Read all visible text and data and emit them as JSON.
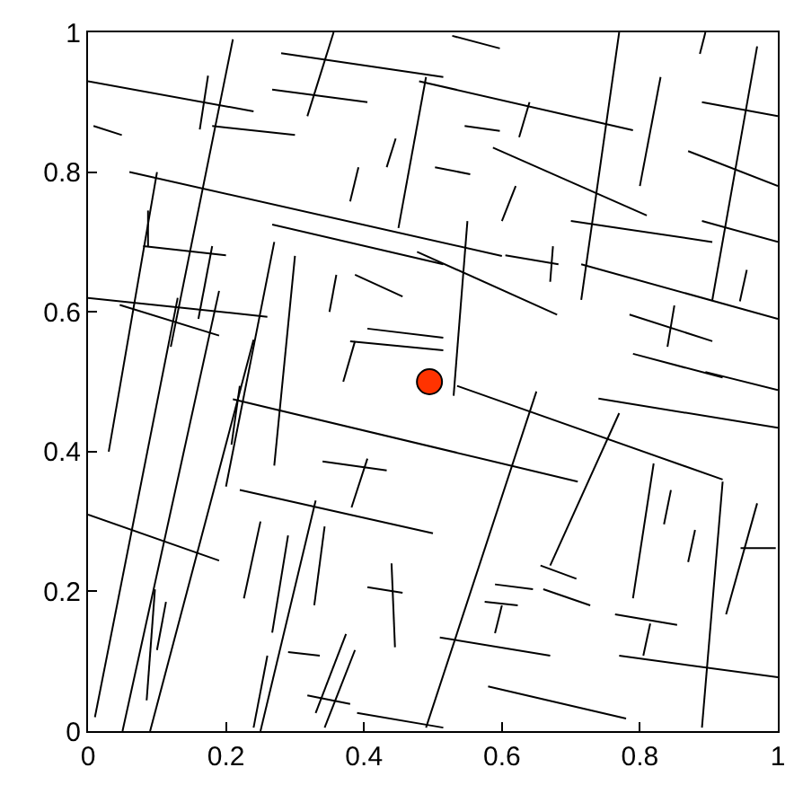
{
  "chart_data": {
    "type": "line",
    "marker": "none",
    "line_style": "solid",
    "grid": false,
    "xlim": [
      0,
      1
    ],
    "ylim": [
      0,
      1
    ],
    "xticks": [
      0,
      0.2,
      0.4,
      0.6,
      0.8,
      1
    ],
    "yticks": [
      0,
      0.2,
      0.4,
      0.6,
      0.8,
      1
    ],
    "series": [
      {
        "color": "#000000",
        "x": [
          0.0,
          0.24
        ],
        "values": [
          0.93,
          0.887
        ]
      },
      {
        "color": "#000000",
        "x": [
          0.48,
          0.79
        ],
        "values": [
          0.93,
          0.86
        ]
      },
      {
        "color": "#000000",
        "x": [
          0.06,
          0.6
        ],
        "values": [
          0.8,
          0.68
        ]
      },
      {
        "color": "#000000",
        "x": [
          0.0,
          0.26
        ],
        "values": [
          0.62,
          0.593
        ]
      },
      {
        "color": "#000000",
        "x": [
          0.0,
          0.19
        ],
        "values": [
          0.31,
          0.244
        ]
      },
      {
        "color": "#000000",
        "x": [
          0.22,
          0.5
        ],
        "values": [
          0.345,
          0.283
        ]
      },
      {
        "color": "#000000",
        "x": [
          0.21,
          0.71
        ],
        "values": [
          0.475,
          0.357
        ]
      },
      {
        "color": "#000000",
        "x": [
          0.535,
          0.92
        ],
        "values": [
          0.494,
          0.36
        ]
      },
      {
        "color": "#000000",
        "x": [
          0.74,
          1.0
        ],
        "values": [
          0.476,
          0.434
        ]
      },
      {
        "color": "#000000",
        "x": [
          0.51,
          0.67
        ],
        "values": [
          0.134,
          0.108
        ]
      },
      {
        "color": "#000000",
        "x": [
          0.77,
          1.0
        ],
        "values": [
          0.108,
          0.077
        ]
      },
      {
        "color": "#000000",
        "x": [
          0.58,
          0.78
        ],
        "values": [
          0.064,
          0.018
        ]
      },
      {
        "color": "#000000",
        "x": [
          0.587,
          0.81
        ],
        "values": [
          0.835,
          0.738
        ]
      },
      {
        "color": "#000000",
        "x": [
          0.7,
          0.905
        ],
        "values": [
          0.73,
          0.7
        ]
      },
      {
        "color": "#000000",
        "x": [
          0.477,
          0.68
        ],
        "values": [
          0.686,
          0.596
        ]
      },
      {
        "color": "#000000",
        "x": [
          0.715,
          1.0
        ],
        "values": [
          0.668,
          0.59
        ]
      },
      {
        "color": "#000000",
        "x": [
          0.28,
          0.515
        ],
        "values": [
          0.97,
          0.936
        ]
      },
      {
        "color": "#000000",
        "x": [
          0.89,
          1.0
        ],
        "values": [
          0.9,
          0.88
        ]
      },
      {
        "color": "#000000",
        "x": [
          0.87,
          1.0
        ],
        "values": [
          0.83,
          0.78
        ]
      },
      {
        "color": "#000000",
        "x": [
          0.89,
          1.0
        ],
        "values": [
          0.73,
          0.7
        ]
      },
      {
        "color": "#000000",
        "x": [
          0.267,
          0.515
        ],
        "values": [
          0.725,
          0.668
        ]
      },
      {
        "color": "#000000",
        "x": [
          0.18,
          0.3
        ],
        "values": [
          0.866,
          0.853
        ]
      },
      {
        "color": "#000000",
        "x": [
          0.046,
          0.19
        ],
        "values": [
          0.61,
          0.566
        ]
      },
      {
        "color": "#000000",
        "x": [
          0.656,
          0.708
        ],
        "values": [
          0.237,
          0.218
        ]
      },
      {
        "color": "#000000",
        "x": [
          0.764,
          0.854
        ],
        "values": [
          0.167,
          0.152
        ]
      },
      {
        "color": "#000000",
        "x": [
          0.815,
          0.805
        ],
        "values": [
          0.154,
          0.108
        ]
      },
      {
        "color": "#000000",
        "x": [
          0.01,
          0.13
        ],
        "values": [
          0.02,
          0.62
        ]
      },
      {
        "color": "#000000",
        "x": [
          0.05,
          0.19
        ],
        "values": [
          0.0,
          0.63
        ]
      },
      {
        "color": "#000000",
        "x": [
          0.09,
          0.24
        ],
        "values": [
          0.0,
          0.56
        ]
      },
      {
        "color": "#000000",
        "x": [
          0.12,
          0.21
        ],
        "values": [
          0.55,
          0.99
        ]
      },
      {
        "color": "#000000",
        "x": [
          0.03,
          0.1
        ],
        "values": [
          0.4,
          0.8
        ]
      },
      {
        "color": "#000000",
        "x": [
          0.2,
          0.27
        ],
        "values": [
          0.35,
          0.7
        ]
      },
      {
        "color": "#000000",
        "x": [
          0.27,
          0.3
        ],
        "values": [
          0.38,
          0.68
        ]
      },
      {
        "color": "#000000",
        "x": [
          0.25,
          0.33
        ],
        "values": [
          0.0,
          0.33
        ]
      },
      {
        "color": "#000000",
        "x": [
          0.77,
          0.715
        ],
        "values": [
          1.0,
          0.617
        ]
      },
      {
        "color": "#000000",
        "x": [
          0.55,
          0.53
        ],
        "values": [
          0.73,
          0.48
        ]
      },
      {
        "color": "#000000",
        "x": [
          0.77,
          0.67
        ],
        "values": [
          0.455,
          0.237
        ]
      },
      {
        "color": "#000000",
        "x": [
          0.97,
          0.905
        ],
        "values": [
          0.98,
          0.617
        ]
      },
      {
        "color": "#000000",
        "x": [
          0.92,
          0.89
        ],
        "values": [
          0.357,
          0.005
        ]
      },
      {
        "color": "#000000",
        "x": [
          0.65,
          0.49
        ],
        "values": [
          0.486,
          0.005
        ]
      },
      {
        "color": "#000000",
        "x": [
          0.356,
          0.318
        ],
        "values": [
          1.0,
          0.88
        ]
      },
      {
        "color": "#000000",
        "x": [
          0.49,
          0.45
        ],
        "values": [
          0.936,
          0.72
        ]
      },
      {
        "color": "#000000",
        "x": [
          0.83,
          0.8
        ],
        "values": [
          0.936,
          0.78
        ]
      },
      {
        "color": "#000000",
        "x": [
          0.64,
          0.625
        ],
        "values": [
          0.9,
          0.85
        ]
      },
      {
        "color": "#000000",
        "x": [
          0.62,
          0.6
        ],
        "values": [
          0.78,
          0.73
        ]
      },
      {
        "color": "#000000",
        "x": [
          0.955,
          0.945
        ],
        "values": [
          0.66,
          0.615
        ]
      },
      {
        "color": "#000000",
        "x": [
          0.82,
          0.79
        ],
        "values": [
          0.383,
          0.19
        ]
      },
      {
        "color": "#000000",
        "x": [
          0.845,
          0.835
        ],
        "values": [
          0.345,
          0.296
        ]
      },
      {
        "color": "#000000",
        "x": [
          0.88,
          0.87
        ],
        "values": [
          0.288,
          0.242
        ]
      },
      {
        "color": "#000000",
        "x": [
          0.97,
          0.925
        ],
        "values": [
          0.326,
          0.167
        ]
      },
      {
        "color": "#000000",
        "x": [
          0.946,
          0.997
        ],
        "values": [
          0.262,
          0.262
        ]
      },
      {
        "color": "#000000",
        "x": [
          0.6,
          0.59
        ],
        "values": [
          0.18,
          0.14
        ]
      },
      {
        "color": "#000000",
        "x": [
          0.575,
          0.623
        ],
        "values": [
          0.185,
          0.18
        ]
      },
      {
        "color": "#000000",
        "x": [
          0.66,
          0.728
        ],
        "values": [
          0.203,
          0.18
        ]
      },
      {
        "color": "#000000",
        "x": [
          0.59,
          0.645
        ],
        "values": [
          0.21,
          0.203
        ]
      },
      {
        "color": "#000000",
        "x": [
          0.387,
          0.343
        ],
        "values": [
          0.116,
          0.005
        ]
      },
      {
        "color": "#000000",
        "x": [
          0.374,
          0.33
        ],
        "values": [
          0.139,
          0.026
        ]
      },
      {
        "color": "#000000",
        "x": [
          0.26,
          0.24
        ],
        "values": [
          0.108,
          0.005
        ]
      },
      {
        "color": "#000000",
        "x": [
          0.29,
          0.336
        ],
        "values": [
          0.113,
          0.108
        ]
      },
      {
        "color": "#000000",
        "x": [
          0.318,
          0.38
        ],
        "values": [
          0.051,
          0.039
        ]
      },
      {
        "color": "#000000",
        "x": [
          0.39,
          0.515
        ],
        "values": [
          0.026,
          0.005
        ]
      },
      {
        "color": "#000000",
        "x": [
          0.343,
          0.328
        ],
        "values": [
          0.293,
          0.18
        ]
      },
      {
        "color": "#000000",
        "x": [
          0.29,
          0.267
        ],
        "values": [
          0.28,
          0.141
        ]
      },
      {
        "color": "#000000",
        "x": [
          0.25,
          0.226
        ],
        "values": [
          0.3,
          0.19
        ]
      },
      {
        "color": "#000000",
        "x": [
          0.113,
          0.1
        ],
        "values": [
          0.185,
          0.116
        ]
      },
      {
        "color": "#000000",
        "x": [
          0.097,
          0.085
        ],
        "values": [
          0.203,
          0.044
        ]
      },
      {
        "color": "#000000",
        "x": [
          0.405,
          0.382
        ],
        "values": [
          0.39,
          0.32
        ]
      },
      {
        "color": "#000000",
        "x": [
          0.34,
          0.433
        ],
        "values": [
          0.386,
          0.373
        ]
      },
      {
        "color": "#000000",
        "x": [
          0.44,
          0.445
        ],
        "values": [
          0.24,
          0.12
        ]
      },
      {
        "color": "#000000",
        "x": [
          0.405,
          0.456
        ],
        "values": [
          0.206,
          0.198
        ]
      },
      {
        "color": "#000000",
        "x": [
          0.22,
          0.208
        ],
        "values": [
          0.494,
          0.41
        ]
      },
      {
        "color": "#000000",
        "x": [
          0.18,
          0.16
        ],
        "values": [
          0.694,
          0.59
        ]
      },
      {
        "color": "#000000",
        "x": [
          0.087,
          0.087
        ],
        "values": [
          0.745,
          0.694
        ]
      },
      {
        "color": "#000000",
        "x": [
          0.08,
          0.2
        ],
        "values": [
          0.694,
          0.681
        ]
      },
      {
        "color": "#000000",
        "x": [
          0.387,
          0.456
        ],
        "values": [
          0.653,
          0.622
        ]
      },
      {
        "color": "#000000",
        "x": [
          0.36,
          0.35
        ],
        "values": [
          0.653,
          0.6
        ]
      },
      {
        "color": "#000000",
        "x": [
          0.38,
          0.515
        ],
        "values": [
          0.558,
          0.545
        ]
      },
      {
        "color": "#000000",
        "x": [
          0.405,
          0.515
        ],
        "values": [
          0.576,
          0.563
        ]
      },
      {
        "color": "#000000",
        "x": [
          0.387,
          0.37
        ],
        "values": [
          0.558,
          0.5
        ]
      },
      {
        "color": "#000000",
        "x": [
          0.446,
          0.433
        ],
        "values": [
          0.848,
          0.807
        ]
      },
      {
        "color": "#000000",
        "x": [
          0.392,
          0.38
        ],
        "values": [
          0.807,
          0.758
        ]
      },
      {
        "color": "#000000",
        "x": [
          0.267,
          0.405
        ],
        "values": [
          0.918,
          0.9
        ]
      },
      {
        "color": "#000000",
        "x": [
          0.008,
          0.049
        ],
        "values": [
          0.866,
          0.853
        ]
      },
      {
        "color": "#000000",
        "x": [
          0.174,
          0.162
        ],
        "values": [
          0.938,
          0.861
        ]
      },
      {
        "color": "#000000",
        "x": [
          0.546,
          0.597
        ],
        "values": [
          0.866,
          0.859
        ]
      },
      {
        "color": "#000000",
        "x": [
          0.503,
          0.554
        ],
        "values": [
          0.807,
          0.797
        ]
      },
      {
        "color": "#000000",
        "x": [
          0.605,
          0.682
        ],
        "values": [
          0.681,
          0.668
        ]
      },
      {
        "color": "#000000",
        "x": [
          0.674,
          0.67
        ],
        "values": [
          0.694,
          0.643
        ]
      },
      {
        "color": "#000000",
        "x": [
          0.785,
          0.905
        ],
        "values": [
          0.596,
          0.558
        ]
      },
      {
        "color": "#000000",
        "x": [
          0.85,
          0.84
        ],
        "values": [
          0.609,
          0.55
        ]
      },
      {
        "color": "#000000",
        "x": [
          0.79,
          0.92
        ],
        "values": [
          0.54,
          0.506
        ]
      },
      {
        "color": "#000000",
        "x": [
          0.895,
          1.0
        ],
        "values": [
          0.514,
          0.488
        ]
      },
      {
        "color": "#000000",
        "x": [
          0.528,
          0.597
        ],
        "values": [
          0.995,
          0.977
        ]
      },
      {
        "color": "#000000",
        "x": [
          0.895,
          0.887
        ],
        "values": [
          1.0,
          0.969
        ]
      },
      {
        "type": "scatter",
        "marker": "circle",
        "color": "#ff3300",
        "x": [
          0.495
        ],
        "values": [
          0.5
        ]
      }
    ]
  }
}
